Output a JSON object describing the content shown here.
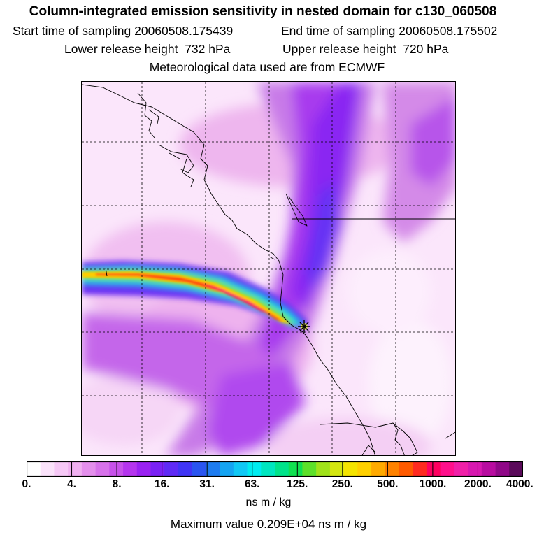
{
  "header": {
    "title": "Column-integrated emission sensitivity in nested domain for c130_060508",
    "start_label": "Start time of sampling",
    "start_value": "20060508.175439",
    "end_label": "End time of sampling",
    "end_value": "20060508.175502",
    "lower_label": "Lower release height",
    "lower_value": "732 hPa",
    "upper_label": "Upper release height",
    "upper_value": "720 hPa",
    "met_note": "Meteorological data used are from ECMWF"
  },
  "colorbar": {
    "ticks": [
      "0.",
      "4.",
      "8.",
      "16.",
      "31.",
      "63.",
      "125.",
      "250.",
      "500.",
      "1000.",
      "2000.",
      "4000."
    ],
    "units": "ns m / kg",
    "colors": [
      "#ffffff",
      "#fbe3fb",
      "#f6c8f6",
      "#f0b0f0",
      "#e48fec",
      "#d772ea",
      "#c752ea",
      "#b535ee",
      "#9a22f2",
      "#7a22f4",
      "#5f2bf5",
      "#4035f5",
      "#2a55f0",
      "#1e7cf0",
      "#15a4f2",
      "#10c8f5",
      "#00ecf0",
      "#00e6c0",
      "#00e38a",
      "#10e050",
      "#5de02a",
      "#a0e21a",
      "#d4e610",
      "#f4e400",
      "#ffd000",
      "#ffaa00",
      "#ff8200",
      "#ff5a00",
      "#ff2a20",
      "#ff0060",
      "#ff108c",
      "#f020a8",
      "#d818b0",
      "#b80ca0",
      "#900888",
      "#5a0a5a"
    ]
  },
  "max_label": "Maximum value",
  "max_value": "0.209E+04 ns m / kg",
  "marker_icon": "release-point-star-icon"
}
